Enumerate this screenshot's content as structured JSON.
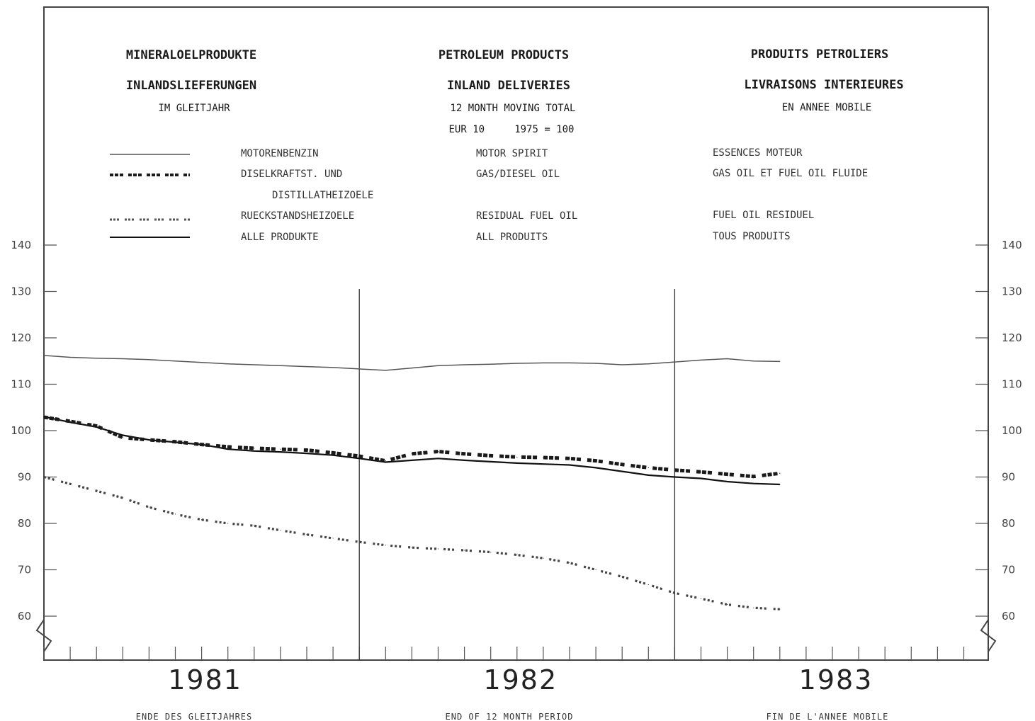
{
  "header": {
    "de_title": "MINERALOELPRODUKTE",
    "de_subtitle": "INLANDSLIEFERUNGEN",
    "de_note": "IM GLEITJAHR",
    "en_title": "PETROLEUM PRODUCTS",
    "en_subtitle": "INLAND DELIVERIES",
    "en_note": "12 MONTH MOVING TOTAL",
    "en_base": "EUR 10     1975 = 100",
    "fr_title": "PRODUITS PETROLIERS",
    "fr_subtitle": "LIVRAISONS INTERIEURES",
    "fr_note": "EN ANNEE MOBILE"
  },
  "legend": [
    {
      "de": "MOTORENBENZIN",
      "de2": "",
      "en": "MOTOR SPIRIT",
      "fr": "ESSENCES MOTEUR",
      "style": "thin"
    },
    {
      "de": "DISELKRAFTST. UND",
      "de2": "DISTILLATHEIZOELE",
      "en": "GAS/DIESEL OIL",
      "fr": "GAS OIL ET FUEL OIL FLUIDE",
      "style": "heavy-dash"
    },
    {
      "de": "RUECKSTANDSHEIZOELE",
      "de2": "",
      "en": "RESIDUAL FUEL OIL",
      "fr": "FUEL OIL RESIDUEL",
      "style": "light-dash"
    },
    {
      "de": "ALLE PRODUKTE",
      "de2": "",
      "en": "ALL PRODUITS",
      "fr": "TOUS PRODUITS",
      "style": "solid"
    }
  ],
  "footer": {
    "de": "ENDE DES GLEITJAHRES",
    "en": "END OF 12 MONTH PERIOD",
    "fr": "FIN DE L'ANNEE MOBILE"
  },
  "colors": {
    "motor": "#555555",
    "gas": "#1a1a1a",
    "residual": "#444444",
    "all": "#111111"
  },
  "chart_data": {
    "type": "line",
    "x": [
      "1981-01",
      "1981-02",
      "1981-03",
      "1981-04",
      "1981-05",
      "1981-06",
      "1981-07",
      "1981-08",
      "1981-09",
      "1981-10",
      "1981-11",
      "1981-12",
      "1982-01",
      "1982-02",
      "1982-03",
      "1982-04",
      "1982-05",
      "1982-06",
      "1982-07",
      "1982-08",
      "1982-09",
      "1982-10",
      "1982-11",
      "1982-12",
      "1983-01",
      "1983-02",
      "1983-03",
      "1983-04",
      "1983-05"
    ],
    "x_tick_labels": [
      "1981",
      "1982",
      "1983"
    ],
    "ylim": [
      55,
      145
    ],
    "y_ticks": [
      60,
      70,
      80,
      90,
      100,
      110,
      120,
      130,
      140
    ],
    "grid": false,
    "series": [
      {
        "name": "MOTORENBENZIN",
        "values": [
          116.2,
          115.8,
          115.6,
          115.5,
          115.3,
          115.0,
          114.7,
          114.4,
          114.2,
          114.0,
          113.8,
          113.6,
          113.3,
          113.0,
          113.5,
          114.0,
          114.2,
          114.3,
          114.5,
          114.6,
          114.6,
          114.5,
          114.2,
          114.4,
          114.8,
          115.2,
          115.5,
          115.0,
          114.9
        ]
      },
      {
        "name": "DISELKRAFTST. UND DISTILLATHEIZOELE",
        "values": [
          102.9,
          102.0,
          101.0,
          98.5,
          98.0,
          97.6,
          97.0,
          96.5,
          96.2,
          96.0,
          95.8,
          95.2,
          94.5,
          93.5,
          95.0,
          95.5,
          95.0,
          94.6,
          94.3,
          94.2,
          94.0,
          93.5,
          92.7,
          92.0,
          91.5,
          91.1,
          90.6,
          90.1,
          90.8
        ]
      },
      {
        "name": "RUECKSTANDSHEIZOELE",
        "values": [
          90.0,
          88.5,
          87.0,
          85.5,
          83.5,
          82.0,
          80.8,
          80.0,
          79.5,
          78.5,
          77.6,
          76.8,
          76.0,
          75.3,
          74.8,
          74.5,
          74.2,
          73.8,
          73.2,
          72.5,
          71.5,
          70.0,
          68.5,
          66.8,
          65.0,
          63.8,
          62.5,
          61.8,
          61.5
        ]
      },
      {
        "name": "ALLE PRODUKTE",
        "values": [
          103.0,
          101.8,
          100.8,
          99.0,
          98.0,
          97.5,
          97.0,
          96.0,
          95.6,
          95.4,
          95.1,
          94.7,
          94.0,
          93.2,
          93.6,
          94.0,
          93.6,
          93.3,
          93.0,
          92.8,
          92.6,
          92.0,
          91.2,
          90.4,
          90.0,
          89.7,
          89.0,
          88.6,
          88.4
        ]
      }
    ]
  }
}
